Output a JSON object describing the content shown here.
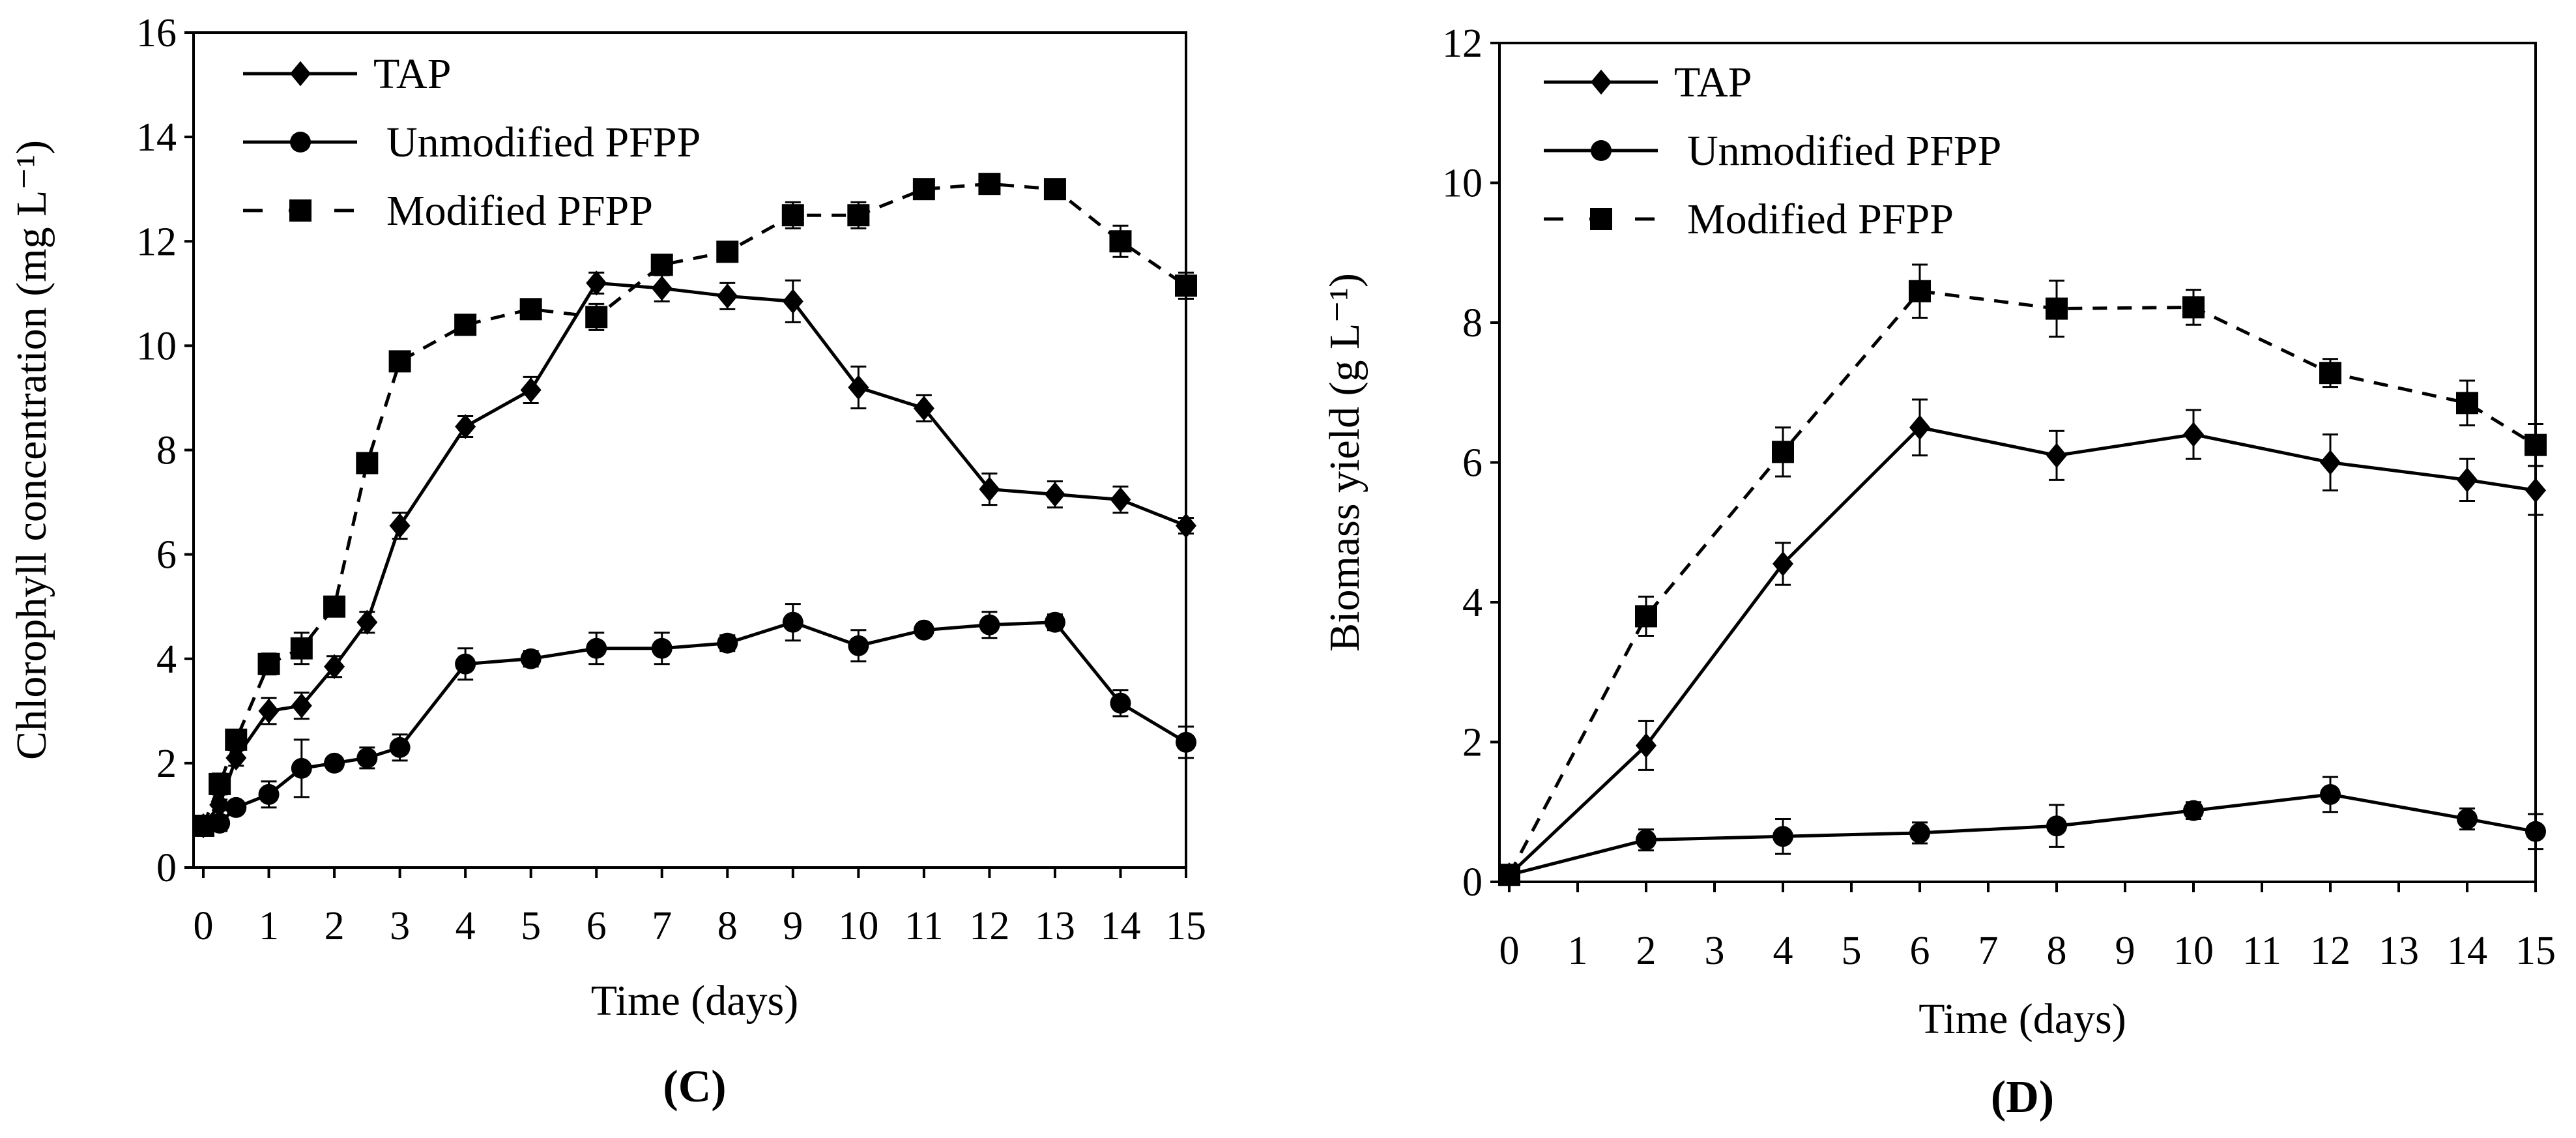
{
  "chart_data": [
    {
      "type": "line",
      "panel_label": "(C)",
      "xlabel": "Time (days)",
      "ylabel": "Chlorophyll concentration (mg L⁻¹)",
      "xlim": [
        0,
        15
      ],
      "ylim": [
        0,
        16
      ],
      "xticks": [
        0,
        1,
        2,
        3,
        4,
        5,
        6,
        7,
        8,
        9,
        10,
        11,
        12,
        13,
        14,
        15
      ],
      "yticks": [
        0,
        2,
        4,
        6,
        8,
        10,
        12,
        14,
        16
      ],
      "grid": false,
      "legend_position": "top-left",
      "x": [
        0,
        0.25,
        0.5,
        1,
        1.5,
        2,
        2.5,
        3,
        4,
        5,
        6,
        7,
        8,
        9,
        10,
        11,
        12,
        13,
        14,
        15
      ],
      "series": [
        {
          "name": "TAP",
          "marker": "diamond",
          "dash": false,
          "values": [
            0.8,
            1.2,
            2.1,
            3.0,
            3.1,
            3.85,
            4.7,
            6.55,
            8.45,
            9.15,
            11.2,
            11.1,
            10.95,
            10.85,
            9.2,
            8.8,
            7.25,
            7.15,
            7.05,
            6.55
          ],
          "errors": [
            0.1,
            0.1,
            0.15,
            0.25,
            0.25,
            0.2,
            0.2,
            0.25,
            0.2,
            0.25,
            0.2,
            0.25,
            0.25,
            0.4,
            0.4,
            0.25,
            0.3,
            0.25,
            0.25,
            0.15
          ]
        },
        {
          "name": "Unmodified PFPP",
          "marker": "circle",
          "dash": false,
          "values": [
            0.8,
            0.85,
            1.15,
            1.4,
            1.9,
            2.0,
            2.1,
            2.3,
            3.9,
            4.0,
            4.2,
            4.2,
            4.3,
            4.7,
            4.25,
            4.55,
            4.65,
            4.7,
            3.15,
            2.4
          ],
          "errors": [
            0.1,
            0.15,
            0.1,
            0.25,
            0.55,
            0.1,
            0.2,
            0.25,
            0.3,
            0.15,
            0.3,
            0.3,
            0.15,
            0.35,
            0.3,
            0.1,
            0.25,
            0.15,
            0.25,
            0.3
          ]
        },
        {
          "name": "Modified PFPP",
          "marker": "square",
          "dash": true,
          "values": [
            0.8,
            1.6,
            2.45,
            3.9,
            4.2,
            5.0,
            7.75,
            9.7,
            10.4,
            10.7,
            10.55,
            11.55,
            11.8,
            12.5,
            12.5,
            13.0,
            13.1,
            13.0,
            12.0,
            11.15
          ],
          "errors": [
            0.1,
            0.2,
            0.15,
            0.2,
            0.3,
            0.1,
            0.15,
            0.15,
            0.1,
            0.1,
            0.25,
            0.1,
            0.1,
            0.25,
            0.25,
            0.1,
            0.1,
            0.1,
            0.3,
            0.25
          ]
        }
      ]
    },
    {
      "type": "line",
      "panel_label": "(D)",
      "xlabel": "Time (days)",
      "ylabel": "Biomass yield (g L⁻¹)",
      "xlim": [
        0,
        15
      ],
      "ylim": [
        0,
        12
      ],
      "xticks": [
        0,
        1,
        2,
        3,
        4,
        5,
        6,
        7,
        8,
        9,
        10,
        11,
        12,
        13,
        14,
        15
      ],
      "yticks": [
        0,
        2,
        4,
        6,
        8,
        10,
        12
      ],
      "grid": false,
      "legend_position": "top-left",
      "x": [
        0,
        2,
        4,
        6,
        8,
        10,
        12,
        14,
        15
      ],
      "series": [
        {
          "name": "TAP",
          "marker": "diamond",
          "dash": false,
          "values": [
            0.1,
            1.95,
            4.55,
            6.5,
            6.1,
            6.4,
            6.0,
            5.75,
            5.6
          ],
          "errors": [
            0.05,
            0.35,
            0.3,
            0.4,
            0.35,
            0.35,
            0.4,
            0.3,
            0.35
          ]
        },
        {
          "name": "Unmodified PFPP",
          "marker": "circle",
          "dash": false,
          "values": [
            0.1,
            0.6,
            0.65,
            0.7,
            0.8,
            1.02,
            1.25,
            0.9,
            0.72
          ],
          "errors": [
            0.05,
            0.15,
            0.25,
            0.15,
            0.3,
            0.12,
            0.25,
            0.15,
            0.25
          ]
        },
        {
          "name": "Modified PFPP",
          "marker": "square",
          "dash": true,
          "values": [
            0.1,
            3.8,
            6.15,
            8.45,
            8.2,
            8.22,
            7.28,
            6.85,
            6.25
          ],
          "errors": [
            0.05,
            0.28,
            0.35,
            0.38,
            0.4,
            0.25,
            0.2,
            0.32,
            0.3
          ]
        }
      ]
    }
  ]
}
